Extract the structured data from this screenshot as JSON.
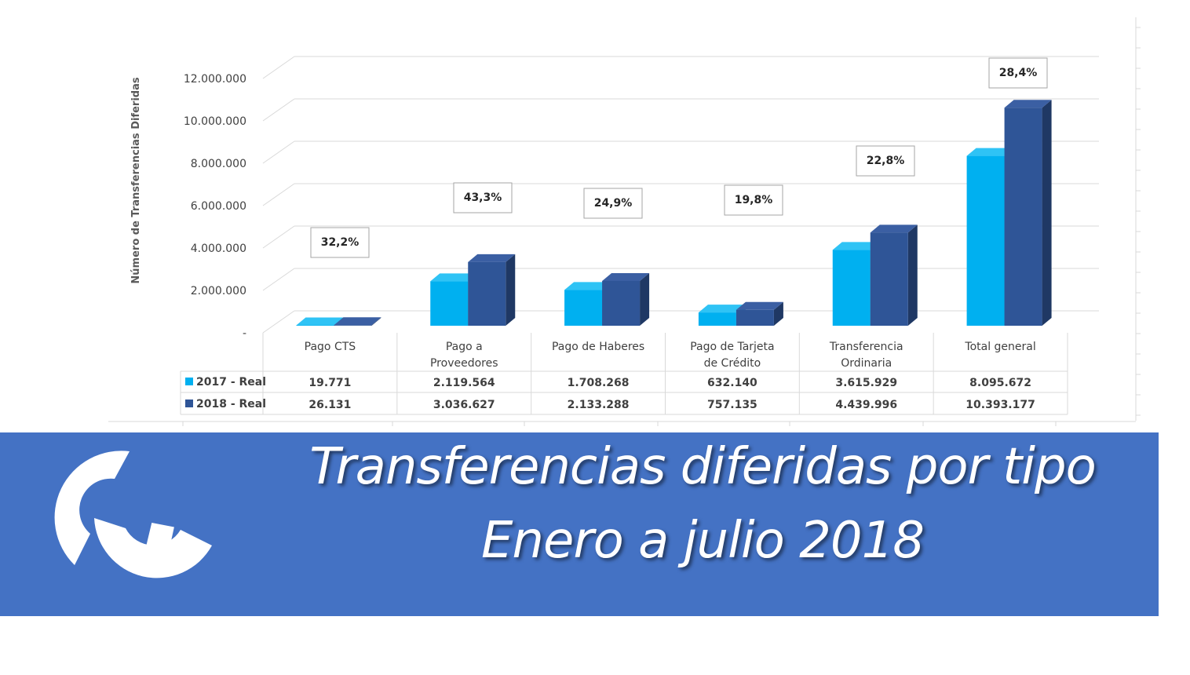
{
  "chart_data": {
    "type": "bar",
    "ylabel": "Número de Transferencias Diferidas",
    "ylim": [
      0,
      12000000
    ],
    "yticks": [
      "-",
      "2.000.000",
      "4.000.000",
      "6.000.000",
      "8.000.000",
      "10.000.000",
      "12.000.000"
    ],
    "categories": [
      [
        "Pago  CTS"
      ],
      [
        "Pago a",
        "Proveedores"
      ],
      [
        "Pago de Haberes"
      ],
      [
        "Pago de Tarjeta",
        "de Crédito"
      ],
      [
        "Transferencia",
        "Ordinaria"
      ],
      [
        "Total general"
      ]
    ],
    "series": [
      {
        "name": "2017 - Real",
        "color": "#00b0f0",
        "values": [
          19771,
          2119564,
          1708268,
          632140,
          3615929,
          8095672
        ],
        "labels": [
          "19.771",
          "2.119.564",
          "1.708.268",
          "632.140",
          "3.615.929",
          "8.095.672"
        ]
      },
      {
        "name": "2018 - Real",
        "color": "#2f5597",
        "values": [
          26131,
          3036627,
          2133288,
          757135,
          4439996,
          10393177
        ],
        "labels": [
          "26.131",
          "3.036.627",
          "2.133.288",
          "757.135",
          "4.439.996",
          "10.393.177"
        ]
      }
    ],
    "annotations": [
      "32,2%",
      "43,3%",
      "24,9%",
      "19,8%",
      "22,8%",
      "28,4%"
    ],
    "grid": true,
    "legend": "data-table"
  },
  "banner": {
    "title_line1": "Transferencias diferidas por tipo",
    "title_line2": "Enero a julio 2018",
    "color": "#4472c4",
    "logo": "cc-logo"
  }
}
